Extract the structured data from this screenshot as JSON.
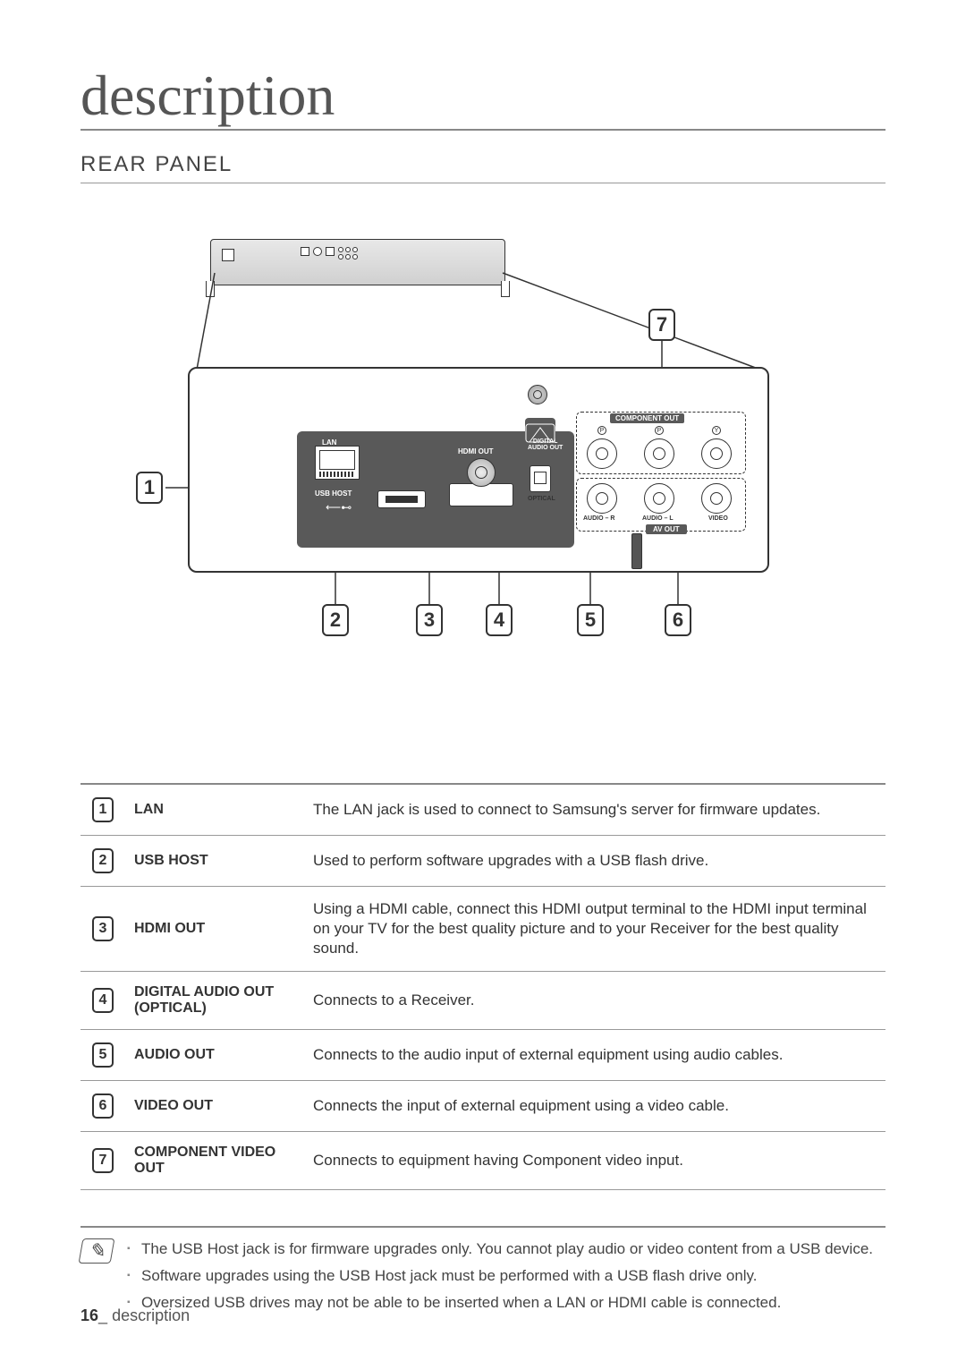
{
  "title": "description",
  "section_heading": "REAR PANEL",
  "diagram": {
    "labels": {
      "component_out": "COMPONENT OUT",
      "digital_audio_out_1": "DIGITAL",
      "digital_audio_out_2": "AUDIO OUT",
      "hdmi_out": "HDMI OUT",
      "usb_host": "USB HOST",
      "lan": "LAN",
      "optical": "OPTICAL",
      "audio_r": "AUDIO – R",
      "audio_l": "AUDIO – L",
      "video": "VIDEO",
      "av_out": "AV OUT"
    },
    "callouts": {
      "1": "1",
      "2": "2",
      "3": "3",
      "4": "4",
      "5": "5",
      "6": "6",
      "7": "7"
    },
    "colors": {
      "stroke": "#333333",
      "panel_bg": "#595959",
      "panel_light": "#b0b0b0"
    }
  },
  "ports": [
    {
      "num": "1",
      "name": "LAN",
      "desc": "The LAN jack is used to connect to Samsung's server for firmware updates."
    },
    {
      "num": "2",
      "name": "USB HOST",
      "desc": "Used to perform software upgrades with a USB flash drive."
    },
    {
      "num": "3",
      "name": "HDMI OUT",
      "desc": "Using a HDMI cable, connect this HDMI output terminal to the HDMI input terminal on your TV for the best quality picture and to your Receiver for the best quality sound."
    },
    {
      "num": "4",
      "name": "DIGITAL AUDIO OUT (OPTICAL)",
      "desc": "Connects to a Receiver."
    },
    {
      "num": "5",
      "name": "AUDIO OUT",
      "desc": "Connects to the audio input of external equipment using audio cables."
    },
    {
      "num": "6",
      "name": "VIDEO OUT",
      "desc": "Connects the input of external equipment using a video cable."
    },
    {
      "num": "7",
      "name": "COMPONENT VIDEO OUT",
      "desc": "Connects to equipment having Component video input."
    }
  ],
  "notes": [
    "The USB Host jack is for firmware upgrades only. You cannot play audio or video content from a USB device.",
    "Software upgrades using the USB Host jack must be performed with a USB flash drive only.",
    "Oversized USB drives may not be able to be inserted when a LAN or HDMI cable is connected."
  ],
  "footer": {
    "page_number": "16",
    "separator": "_",
    "label": "description"
  }
}
